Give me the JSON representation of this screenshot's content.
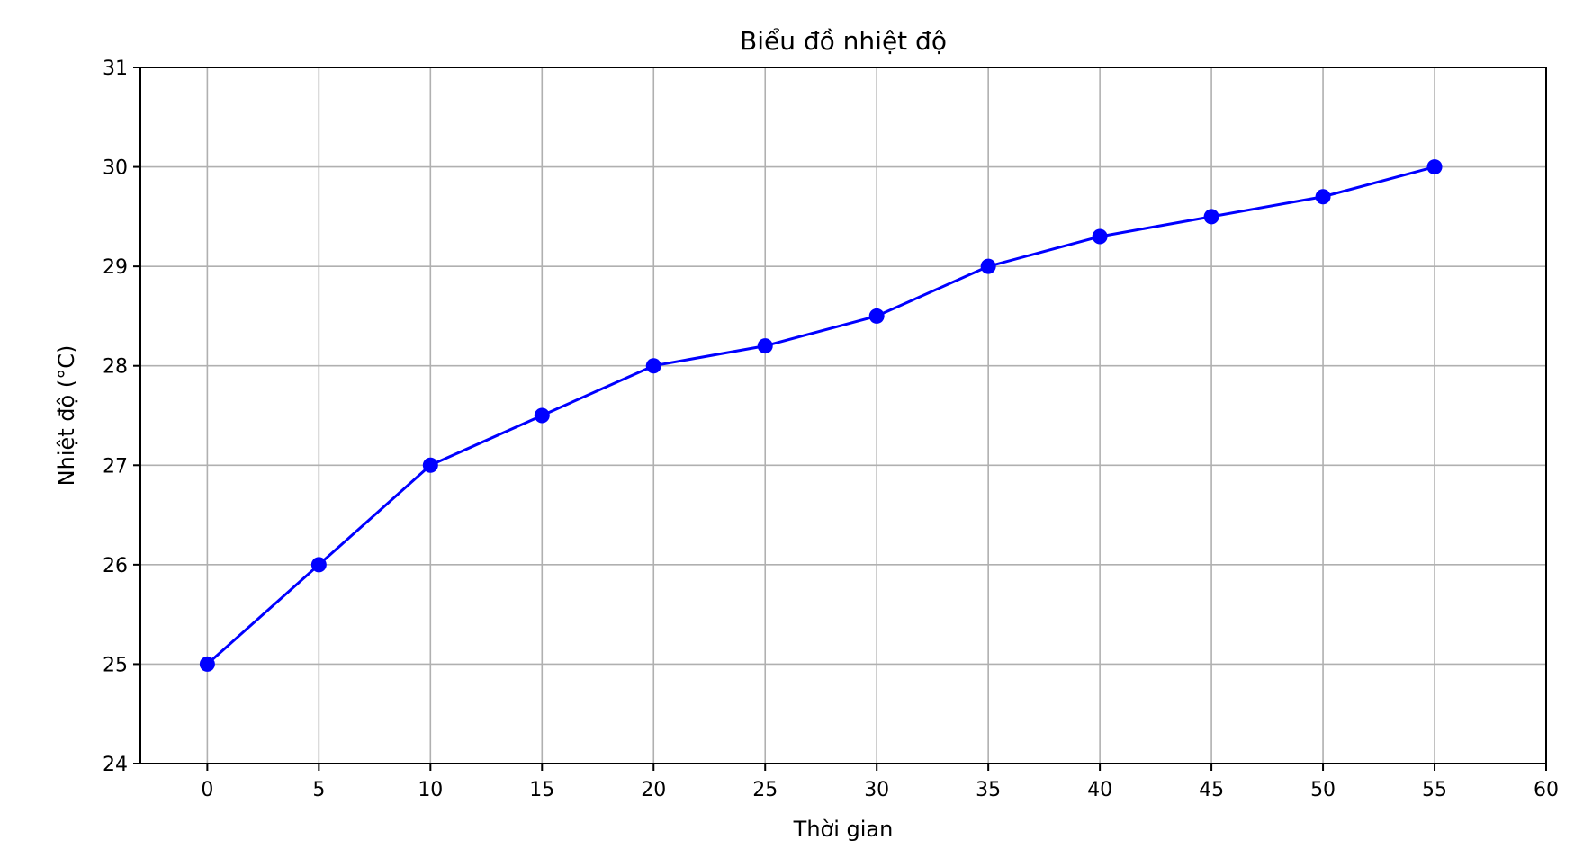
{
  "chart_data": {
    "type": "line",
    "title": "Biểu đồ nhiệt độ",
    "xlabel": "Thời gian",
    "ylabel": "Nhiệt độ (°C)",
    "xlim": [
      -3,
      60
    ],
    "ylim": [
      24,
      31
    ],
    "xticks": [
      0,
      5,
      10,
      15,
      20,
      25,
      30,
      35,
      40,
      45,
      50,
      55,
      60
    ],
    "yticks": [
      24,
      25,
      26,
      27,
      28,
      29,
      30,
      31
    ],
    "grid": true,
    "series": [
      {
        "x": [
          0,
          5,
          10,
          15,
          20,
          25,
          30,
          35,
          40,
          45,
          50,
          55
        ],
        "y": [
          25,
          26,
          27,
          27.5,
          28,
          28.2,
          28.5,
          29,
          29.3,
          29.5,
          29.7,
          30
        ],
        "color": "#0000ff",
        "marker": "circle"
      }
    ]
  }
}
